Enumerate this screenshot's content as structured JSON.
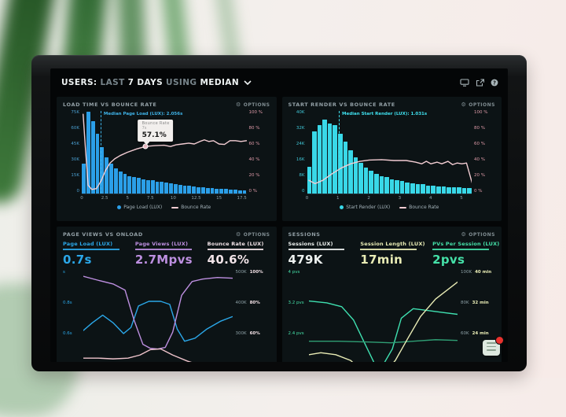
{
  "header": {
    "segments": [
      {
        "text": "USERS:",
        "bold": true
      },
      {
        "text": "LAST",
        "bold": false
      },
      {
        "text": "7 DAYS",
        "bold": true
      },
      {
        "text": "USING",
        "bold": false
      },
      {
        "text": "MEDIAN",
        "bold": true
      }
    ],
    "icons": [
      "display-icon",
      "share-icon",
      "help-icon"
    ]
  },
  "chart_data": [
    {
      "type": "bar",
      "panel_title": "LOAD TIME VS BOUNCE RATE",
      "options_label": "OPTIONS",
      "x_max": 18,
      "xticks": [
        "0",
        "2.5",
        "5",
        "7.5",
        "10",
        "12.5",
        "15",
        "17.5"
      ],
      "yticks_left": [
        "75K",
        "60K",
        "45K",
        "30K",
        "15K",
        "0"
      ],
      "yticks_right": [
        "100 %",
        "80 %",
        "60 %",
        "40 %",
        "20 %",
        "0 %"
      ],
      "bars": {
        "name": "Page Load (LUX)",
        "unit": "K",
        "ymax": 75,
        "values": [
          27,
          74,
          66,
          54,
          42,
          33,
          27,
          23,
          20,
          18,
          16,
          15,
          14,
          13,
          12.5,
          12,
          11,
          10.5,
          10,
          9,
          8.5,
          8,
          7.5,
          7,
          6.5,
          6,
          5.5,
          5,
          5,
          4.5,
          4,
          4,
          3.5,
          3.5,
          3,
          3
        ]
      },
      "line": {
        "name": "Bounce Rate",
        "unit": "%",
        "points": [
          [
            0.15,
            96
          ],
          [
            0.4,
            55
          ],
          [
            0.7,
            10
          ],
          [
            1.1,
            5
          ],
          [
            1.6,
            6
          ],
          [
            2.1,
            15
          ],
          [
            2.6,
            28
          ],
          [
            3.1,
            37
          ],
          [
            3.6,
            42
          ],
          [
            4.2,
            46
          ],
          [
            5,
            50
          ],
          [
            6,
            54
          ],
          [
            7,
            57.1
          ],
          [
            8,
            58
          ],
          [
            9,
            58.5
          ],
          [
            9.7,
            57
          ],
          [
            10.3,
            59
          ],
          [
            11,
            60
          ],
          [
            11.7,
            61
          ],
          [
            12.3,
            60
          ],
          [
            12.9,
            63
          ],
          [
            13.4,
            65
          ],
          [
            13.9,
            63
          ],
          [
            14.4,
            64
          ],
          [
            15,
            60
          ],
          [
            15.6,
            59.5
          ],
          [
            16.2,
            64
          ],
          [
            16.8,
            64
          ],
          [
            17.4,
            63
          ],
          [
            18,
            64
          ]
        ]
      },
      "median": {
        "value": 2.056,
        "label": "Median Page Load (LUX): 2.056s"
      },
      "tooltip": {
        "title": "Bounce Rate",
        "x_label": "7s",
        "value": "57.1%",
        "x": 7,
        "y_pct": 57.1
      },
      "legend": [
        {
          "label": "Page Load (LUX)",
          "swatch": "dot"
        },
        {
          "label": "Bounce Rate",
          "swatch": "line"
        }
      ],
      "colors": {
        "bars": "#2b9fe8",
        "line": "#f3cdd3",
        "axis_left": "#4a9ecf",
        "axis_right": "#de9aa8",
        "median": "#3fb3e8"
      }
    },
    {
      "type": "bar",
      "panel_title": "START RENDER VS BOUNCE RATE",
      "options_label": "OPTIONS",
      "x_max": 5.33,
      "xticks": [
        "0",
        "1",
        "2",
        "3",
        "4",
        "5"
      ],
      "yticks_left": [
        "40K",
        "32K",
        "24K",
        "16K",
        "8K",
        "0"
      ],
      "yticks_right": [
        "100 %",
        "80 %",
        "60 %",
        "40 %",
        "20 %",
        "0 %"
      ],
      "bars": {
        "name": "Start Render (LUX)",
        "unit": "K",
        "ymax": 40,
        "values": [
          13,
          30,
          33,
          36,
          34,
          33,
          29,
          25,
          21,
          17.5,
          15,
          12.5,
          11,
          9.5,
          8.5,
          8,
          7,
          6.5,
          6,
          5.5,
          5,
          4.5,
          4.5,
          4,
          4,
          3.5,
          3.5,
          3,
          3,
          3,
          2.5,
          2.5
        ]
      },
      "line": {
        "name": "Bounce Rate",
        "unit": "%",
        "points": [
          [
            0.05,
            16
          ],
          [
            0.25,
            12
          ],
          [
            0.5,
            16
          ],
          [
            0.8,
            24
          ],
          [
            1.1,
            31
          ],
          [
            1.4,
            36
          ],
          [
            1.7,
            39
          ],
          [
            2,
            40.5
          ],
          [
            2.4,
            41
          ],
          [
            2.8,
            40
          ],
          [
            3.2,
            40
          ],
          [
            3.5,
            38
          ],
          [
            3.7,
            36
          ],
          [
            3.85,
            39
          ],
          [
            4,
            36
          ],
          [
            4.2,
            38
          ],
          [
            4.35,
            36
          ],
          [
            4.55,
            39
          ],
          [
            4.7,
            35
          ],
          [
            4.85,
            37
          ],
          [
            5,
            36
          ],
          [
            5.15,
            37
          ],
          [
            5.33,
            13
          ]
        ]
      },
      "median": {
        "value": 1.031,
        "label": "Median Start Render (LUX): 1.031s"
      },
      "tooltip": null,
      "legend": [
        {
          "label": "Start Render (LUX)",
          "swatch": "dot"
        },
        {
          "label": "Bounce Rate",
          "swatch": "line"
        }
      ],
      "colors": {
        "bars": "#39d8e8",
        "line": "#f3cdd3",
        "axis_left": "#3fc4d4",
        "axis_right": "#de9aa8",
        "median": "#3fe0ee"
      }
    },
    {
      "type": "line",
      "panel_title": "PAGE VIEWS VS ONLOAD",
      "options_label": "OPTIONS",
      "metrics": [
        {
          "label": "Page Load (LUX)",
          "value": "0.7s",
          "color": "#2ba7e8"
        },
        {
          "label": "Page Views (LUX)",
          "value": "2.7Mpvs",
          "color": "#bd8fe0"
        },
        {
          "label": "Bounce Rate (LUX)",
          "value": "40.6%",
          "color": "#f2e4e8"
        }
      ],
      "yticks_left": {
        "labels": [
          "s",
          "0.8s",
          "0.6s",
          "0.4s"
        ],
        "color": "#2ba7e8"
      },
      "yticks_right": [
        [
          "500K",
          "100%"
        ],
        [
          "400K",
          "80%"
        ],
        [
          "300K",
          "60%"
        ],
        [
          "200K",
          "40%"
        ]
      ],
      "right2_color": "#f0dfe4",
      "tick_tops": [
        0.02,
        0.28,
        0.54,
        0.8
      ],
      "series": [
        {
          "name": "Page Load (LUX)",
          "unit": "s",
          "color": "#2ba7e8",
          "ylim": [
            0.246,
            1.015
          ],
          "x": [
            0,
            0.06,
            0.13,
            0.2,
            0.27,
            0.32,
            0.37,
            0.44,
            0.52,
            0.58,
            0.63,
            0.68,
            0.75,
            0.83,
            0.92,
            1
          ],
          "values": [
            0.62,
            0.67,
            0.72,
            0.67,
            0.6,
            0.64,
            0.78,
            0.81,
            0.81,
            0.79,
            0.63,
            0.55,
            0.57,
            0.63,
            0.68,
            0.71
          ]
        },
        {
          "name": "Page Views (LUX)",
          "unit": "K",
          "color": "#bd8fe0",
          "ylim": [
            123,
            508
          ],
          "x": [
            0,
            0.1,
            0.2,
            0.28,
            0.34,
            0.4,
            0.45,
            0.5,
            0.55,
            0.6,
            0.66,
            0.73,
            0.8,
            0.9,
            1
          ],
          "values": [
            487,
            474,
            462,
            442,
            345,
            265,
            252,
            250,
            255,
            305,
            425,
            470,
            478,
            483,
            481
          ]
        },
        {
          "name": "Bounce Rate (LUX)",
          "unit": "%",
          "color": "#eec3cb",
          "ylim": [
            24.6,
            101.5
          ],
          "x": [
            0,
            0.1,
            0.2,
            0.3,
            0.38,
            0.45,
            0.52,
            0.6,
            0.7,
            0.8,
            0.9,
            1
          ],
          "values": [
            44,
            44,
            43.5,
            44,
            46,
            49.5,
            50,
            46,
            42,
            39,
            36.5,
            34
          ]
        }
      ]
    },
    {
      "type": "line",
      "panel_title": "SESSIONS",
      "options_label": "OPTIONS",
      "metrics": [
        {
          "label": "Sessions (LUX)",
          "value": "479K",
          "color": "#edf1ef"
        },
        {
          "label": "Session Length (LUX)",
          "value": "17min",
          "color": "#e9ecb5"
        },
        {
          "label": "PVs Per Session (LUX)",
          "value": "2pvs",
          "color": "#45e0a8"
        }
      ],
      "yticks_left": {
        "labels": [
          "4 pvs",
          "3.2 pvs",
          "2.4 pvs",
          "1.6 pvs"
        ],
        "color": "#45e0a8"
      },
      "yticks_right": [
        [
          "100K",
          "40 min"
        ],
        [
          "80K",
          "32 min"
        ],
        [
          "60K",
          "24 min"
        ],
        [
          "40K",
          ""
        ]
      ],
      "right2_color": "#e9ecb5",
      "tick_tops": [
        0.02,
        0.28,
        0.54,
        0.8
      ],
      "series": [
        {
          "name": "PVs Per Session (LUX)",
          "unit": "pvs",
          "color": "#3fe0b0",
          "ylim": [
            0.985,
            4.06
          ],
          "x": [
            0,
            0.12,
            0.22,
            0.3,
            0.38,
            0.44,
            0.5,
            0.56,
            0.62,
            0.7,
            0.8,
            0.9,
            1
          ],
          "values": [
            3.25,
            3.2,
            3.1,
            2.75,
            2.1,
            1.62,
            1.6,
            2.0,
            2.8,
            3.05,
            3.0,
            2.95,
            2.9
          ]
        },
        {
          "name": "Sessions (LUX)",
          "unit": "K",
          "color": "#2f9e74",
          "ylim": [
            24.6,
            101.5
          ],
          "x": [
            0,
            0.2,
            0.4,
            0.55,
            0.7,
            0.85,
            1
          ],
          "values": [
            55,
            55,
            54.5,
            54,
            55,
            56,
            55.5
          ]
        },
        {
          "name": "Session Length (LUX)",
          "unit": "min",
          "color": "#e9ecb5",
          "ylim": [
            9.85,
            40.6
          ],
          "x": [
            0,
            0.08,
            0.18,
            0.28,
            0.35,
            0.42,
            0.5,
            0.58,
            0.66,
            0.75,
            0.85,
            1
          ],
          "values": [
            18.5,
            19,
            18.5,
            17,
            14.5,
            12.5,
            13.5,
            17,
            22.5,
            28.5,
            33,
            37.5
          ]
        }
      ]
    }
  ]
}
